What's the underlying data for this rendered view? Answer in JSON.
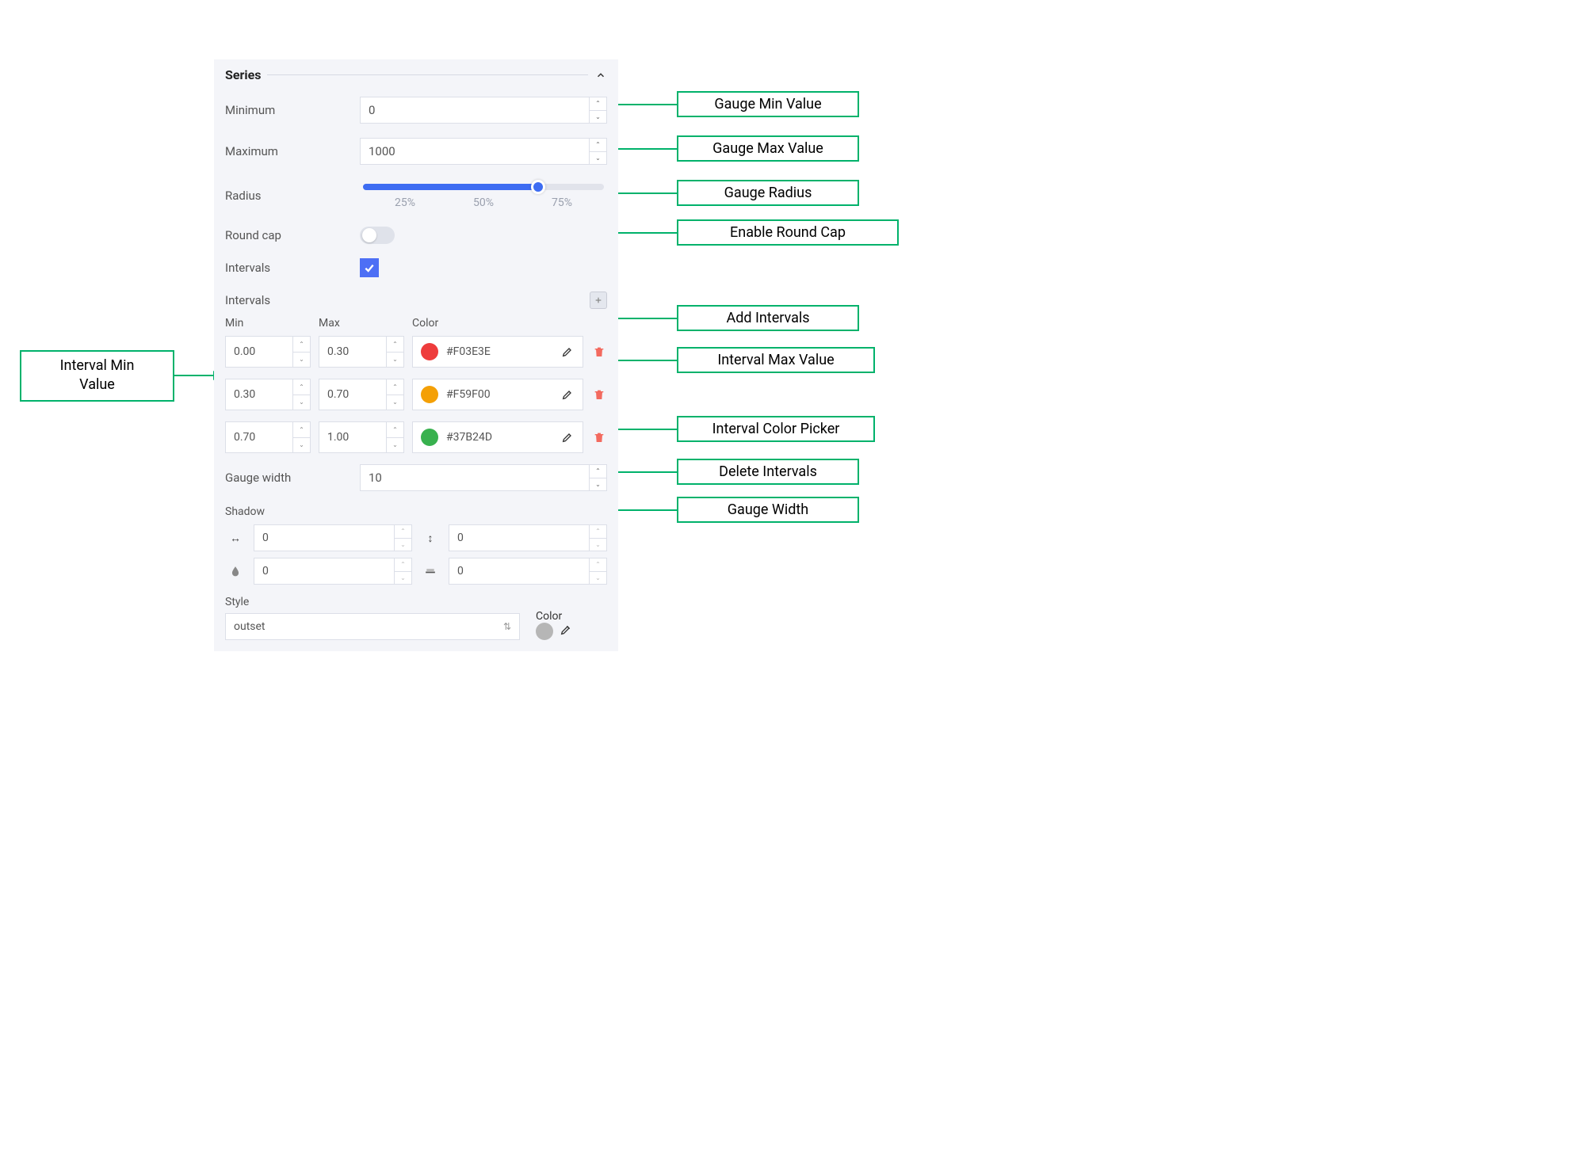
{
  "section_title": "Series",
  "fields": {
    "minimum_label": "Minimum",
    "minimum_value": "0",
    "maximum_label": "Maximum",
    "maximum_value": "1000",
    "radius_label": "Radius",
    "radius_ticks": [
      "25%",
      "50%",
      "75%"
    ],
    "radius_percent": 72,
    "roundcap_label": "Round cap",
    "roundcap_on": false,
    "intervals_check_label": "Intervals",
    "intervals_check_on": true,
    "intervals_add_label": "Intervals",
    "gauge_width_label": "Gauge width",
    "gauge_width_value": "10",
    "shadow_label": "Shadow",
    "shadow_x": "0",
    "shadow_y": "0",
    "shadow_blur": "0",
    "shadow_spread": "0",
    "style_label": "Style",
    "style_value": "outset",
    "color_label": "Color",
    "style_color": "#b6b6b6"
  },
  "interval_headers": {
    "min": "Min",
    "max": "Max",
    "color": "Color"
  },
  "intervals": [
    {
      "min": "0.00",
      "max": "0.30",
      "hex": "#F03E3E",
      "swatch": "#ee3c3c"
    },
    {
      "min": "0.30",
      "max": "0.70",
      "hex": "#F59F00",
      "swatch": "#f4a006"
    },
    {
      "min": "0.70",
      "max": "1.00",
      "hex": "#37B24D",
      "swatch": "#38b14e"
    }
  ],
  "callouts": {
    "gauge_min": "Gauge Min Value",
    "gauge_max": "Gauge Max Value",
    "gauge_radius": "Gauge Radius",
    "round_cap": "Enable Round Cap",
    "add_intervals": "Add Intervals",
    "interval_max": "Interval Max Value",
    "interval_color_picker": "Interval Color Picker",
    "delete_intervals": "Delete Intervals",
    "gauge_width": "Gauge Width",
    "interval_min_l1": "Interval Min",
    "interval_min_l2": "Value"
  },
  "theme": {
    "panel_bg": "#f4f5f9",
    "border": "#dcdfe8",
    "accent": "#3d6cf2",
    "checkbox": "#4d6ff5",
    "callout_border": "#00b26b",
    "trash": "#f36a5f"
  }
}
